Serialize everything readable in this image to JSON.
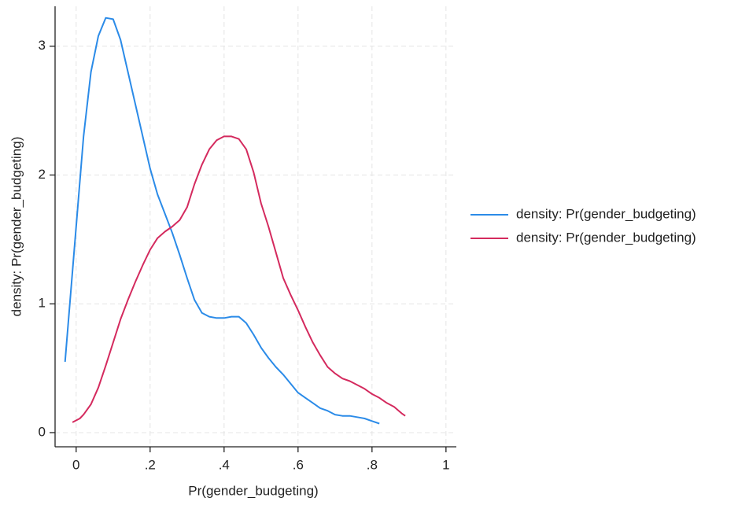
{
  "chart_data": {
    "type": "line",
    "xlabel": "Pr(gender_budgeting)",
    "ylabel": "density: Pr(gender_budgeting)",
    "xlim": [
      -0.057,
      1.028
    ],
    "ylim": [
      -0.11,
      3.31
    ],
    "xticks": [
      0,
      {
        "value": 0.2,
        "label": ".2"
      },
      {
        "value": 0.4,
        "label": ".4"
      },
      {
        "value": 0.6,
        "label": ".6"
      },
      {
        "value": 0.8,
        "label": ".8"
      },
      1
    ],
    "yticks": [
      0,
      1,
      2,
      3
    ],
    "grid": true,
    "legend": "right",
    "series": [
      {
        "name": "density: Pr(gender_budgeting)",
        "color": "#2b8be8",
        "x": [
          -0.03,
          -0.02,
          0,
          0.02,
          0.04,
          0.06,
          0.08,
          0.1,
          0.12,
          0.14,
          0.16,
          0.18,
          0.2,
          0.22,
          0.24,
          0.26,
          0.28,
          0.3,
          0.32,
          0.34,
          0.36,
          0.38,
          0.4,
          0.42,
          0.44,
          0.46,
          0.48,
          0.5,
          0.52,
          0.54,
          0.56,
          0.58,
          0.6,
          0.62,
          0.64,
          0.66,
          0.68,
          0.7,
          0.72,
          0.74,
          0.76,
          0.78,
          0.8,
          0.82
        ],
        "values": [
          0.55,
          0.9,
          1.6,
          2.3,
          2.8,
          3.08,
          3.22,
          3.21,
          3.05,
          2.8,
          2.55,
          2.3,
          2.05,
          1.85,
          1.7,
          1.55,
          1.38,
          1.2,
          1.03,
          0.93,
          0.9,
          0.89,
          0.89,
          0.9,
          0.9,
          0.85,
          0.76,
          0.66,
          0.58,
          0.51,
          0.45,
          0.38,
          0.31,
          0.27,
          0.23,
          0.19,
          0.17,
          0.14,
          0.13,
          0.13,
          0.12,
          0.11,
          0.09,
          0.07
        ]
      },
      {
        "name": "density: Pr(gender_budgeting)",
        "color": "#d42a5e",
        "x": [
          -0.01,
          0.01,
          0.02,
          0.04,
          0.06,
          0.08,
          0.1,
          0.12,
          0.14,
          0.16,
          0.18,
          0.2,
          0.22,
          0.24,
          0.26,
          0.28,
          0.3,
          0.32,
          0.34,
          0.36,
          0.38,
          0.4,
          0.42,
          0.44,
          0.46,
          0.48,
          0.5,
          0.52,
          0.54,
          0.56,
          0.58,
          0.6,
          0.62,
          0.64,
          0.66,
          0.68,
          0.7,
          0.72,
          0.74,
          0.76,
          0.78,
          0.8,
          0.82,
          0.84,
          0.86,
          0.88,
          0.89
        ],
        "values": [
          0.08,
          0.11,
          0.14,
          0.22,
          0.35,
          0.52,
          0.7,
          0.88,
          1.03,
          1.17,
          1.3,
          1.42,
          1.51,
          1.56,
          1.6,
          1.65,
          1.75,
          1.93,
          2.08,
          2.2,
          2.27,
          2.3,
          2.3,
          2.28,
          2.2,
          2.02,
          1.78,
          1.6,
          1.4,
          1.2,
          1.07,
          0.95,
          0.82,
          0.7,
          0.6,
          0.51,
          0.46,
          0.42,
          0.4,
          0.37,
          0.34,
          0.3,
          0.27,
          0.23,
          0.2,
          0.15,
          0.13
        ]
      }
    ]
  }
}
